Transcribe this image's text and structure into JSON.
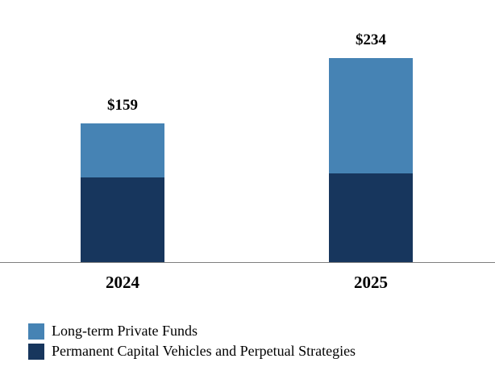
{
  "chart_data": {
    "type": "bar",
    "stacked": true,
    "title": "",
    "xlabel": "",
    "ylabel": "",
    "categories": [
      "2024",
      "2025"
    ],
    "series": [
      {
        "name": "Long-term Private Funds",
        "color": "#4683B4",
        "values": [
          62,
          132
        ]
      },
      {
        "name": "Permanent Capital Vehicles and Perpetual Strategies",
        "color": "#17365D",
        "values": [
          97,
          102
        ]
      }
    ],
    "total_labels": [
      "$159",
      "$234"
    ],
    "total_values": [
      159,
      234
    ],
    "ylim": [
      0,
      260
    ],
    "grid": false,
    "legend_position": "bottom-left",
    "axis_line_color": "#7f7f7f"
  },
  "legend": {
    "items": [
      {
        "label": "Long-term Private Funds",
        "color": "#4683B4"
      },
      {
        "label": "Permanent Capital Vehicles and Perpetual Strategies",
        "color": "#17365D"
      }
    ]
  }
}
